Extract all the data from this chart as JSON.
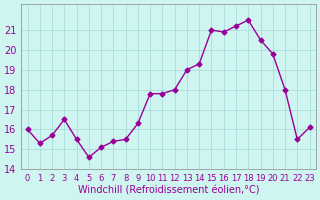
{
  "x": [
    0,
    1,
    2,
    3,
    4,
    5,
    6,
    7,
    8,
    9,
    10,
    11,
    12,
    13,
    14,
    15,
    16,
    17,
    18,
    19,
    20,
    21,
    22,
    23
  ],
  "y": [
    16.0,
    15.3,
    15.7,
    16.5,
    15.5,
    14.6,
    15.1,
    15.4,
    15.5,
    16.3,
    17.8,
    17.8,
    18.0,
    19.0,
    19.3,
    21.0,
    20.9,
    21.2,
    21.5,
    20.5,
    19.8,
    18.0,
    15.5,
    16.1
  ],
  "line_color": "#990099",
  "marker_color": "#990099",
  "bg_color": "#cef5ef",
  "grid_color": "#aadddd",
  "text_color": "#990099",
  "xlabel": "Windchill (Refroidissement éolien,°C)",
  "ylim": [
    14,
    22
  ],
  "xlim": [
    -0.5,
    23.5
  ],
  "yticks": [
    14,
    15,
    16,
    17,
    18,
    19,
    20,
    21
  ],
  "xticks": [
    0,
    1,
    2,
    3,
    4,
    5,
    6,
    7,
    8,
    9,
    10,
    11,
    12,
    13,
    14,
    15,
    16,
    17,
    18,
    19,
    20,
    21,
    22,
    23
  ]
}
